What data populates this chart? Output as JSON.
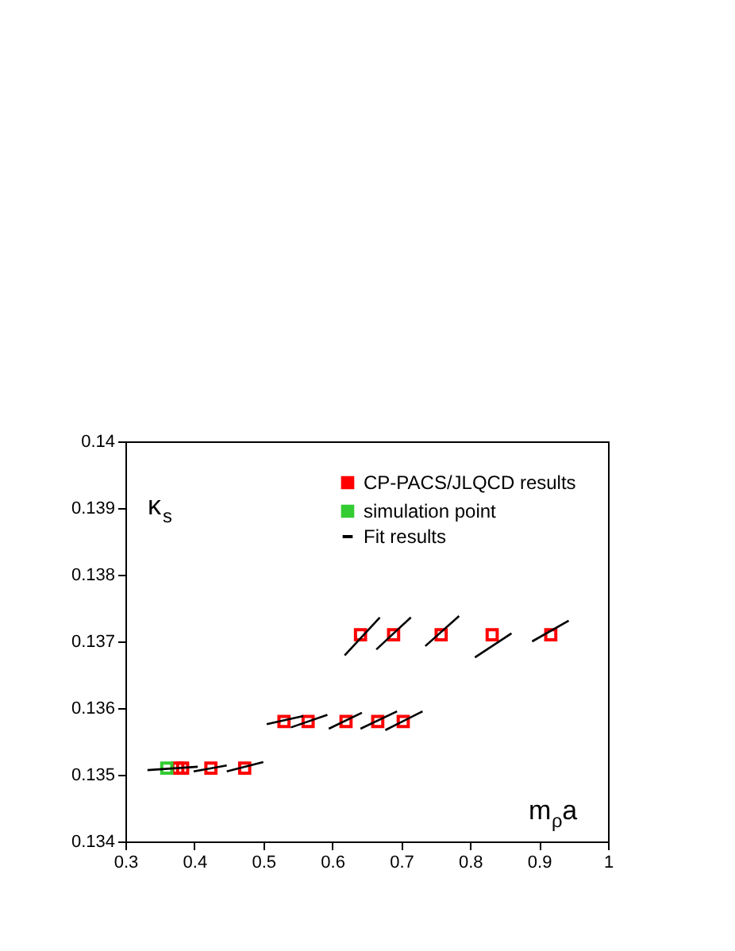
{
  "chart_data": {
    "type": "scatter",
    "xlabel": "m$_{ρ}$a",
    "ylabel": "κ$_{s}$",
    "xlim": [
      0.3,
      1
    ],
    "xticks": [
      0.3,
      0.4,
      0.5,
      0.6,
      0.7,
      0.8,
      0.9,
      1
    ],
    "ylim": [
      0.134,
      0.14
    ],
    "yticks": [
      0.134,
      0.135,
      0.136,
      0.137,
      0.138,
      0.139,
      0.14
    ],
    "grid": false,
    "legend": "top right",
    "marker": "square",
    "series": [
      {
        "name": "CP-PACS/JLQCD results",
        "color": "#ff0000",
        "x": [
          0.376,
          0.383,
          0.424,
          0.473,
          0.53,
          0.565,
          0.62,
          0.666,
          0.703,
          0.641,
          0.689,
          0.758,
          0.832,
          0.917
        ],
        "values": [
          0.1351,
          0.1351,
          0.1351,
          0.1351,
          0.1358,
          0.1358,
          0.1358,
          0.1358,
          0.1358,
          0.1371,
          0.1371,
          0.1371,
          0.1371,
          0.1371
        ]
      },
      {
        "name": "simulation point",
        "color": "#33cc33",
        "x": [
          0.36
        ],
        "values": [
          0.1351
        ]
      },
      {
        "name": "Fit results",
        "color": "#000000",
        "type": "line",
        "marker": "none",
        "x": [
          0.332,
          0.405,
          null,
          0.399,
          0.447,
          null,
          0.447,
          0.5,
          null,
          0.505,
          0.558,
          null,
          0.54,
          0.593,
          null,
          0.595,
          0.643,
          null,
          0.641,
          0.694,
          null,
          0.677,
          0.731,
          null,
          0.618,
          0.669,
          null,
          0.664,
          0.714,
          null,
          0.735,
          0.784,
          null,
          0.807,
          0.86,
          null,
          0.89,
          0.943
        ],
        "values": [
          0.13507,
          0.13512,
          null,
          0.13505,
          0.13514,
          null,
          0.13505,
          0.13519,
          null,
          0.13576,
          0.13588,
          null,
          0.13571,
          0.1359,
          null,
          0.13569,
          0.13593,
          null,
          0.13569,
          0.13595,
          null,
          0.13567,
          0.13595,
          null,
          0.13679,
          0.13736,
          null,
          0.13688,
          0.13736,
          null,
          0.13693,
          0.13738,
          null,
          0.13676,
          0.13712,
          null,
          0.137,
          0.13731
        ]
      }
    ]
  }
}
